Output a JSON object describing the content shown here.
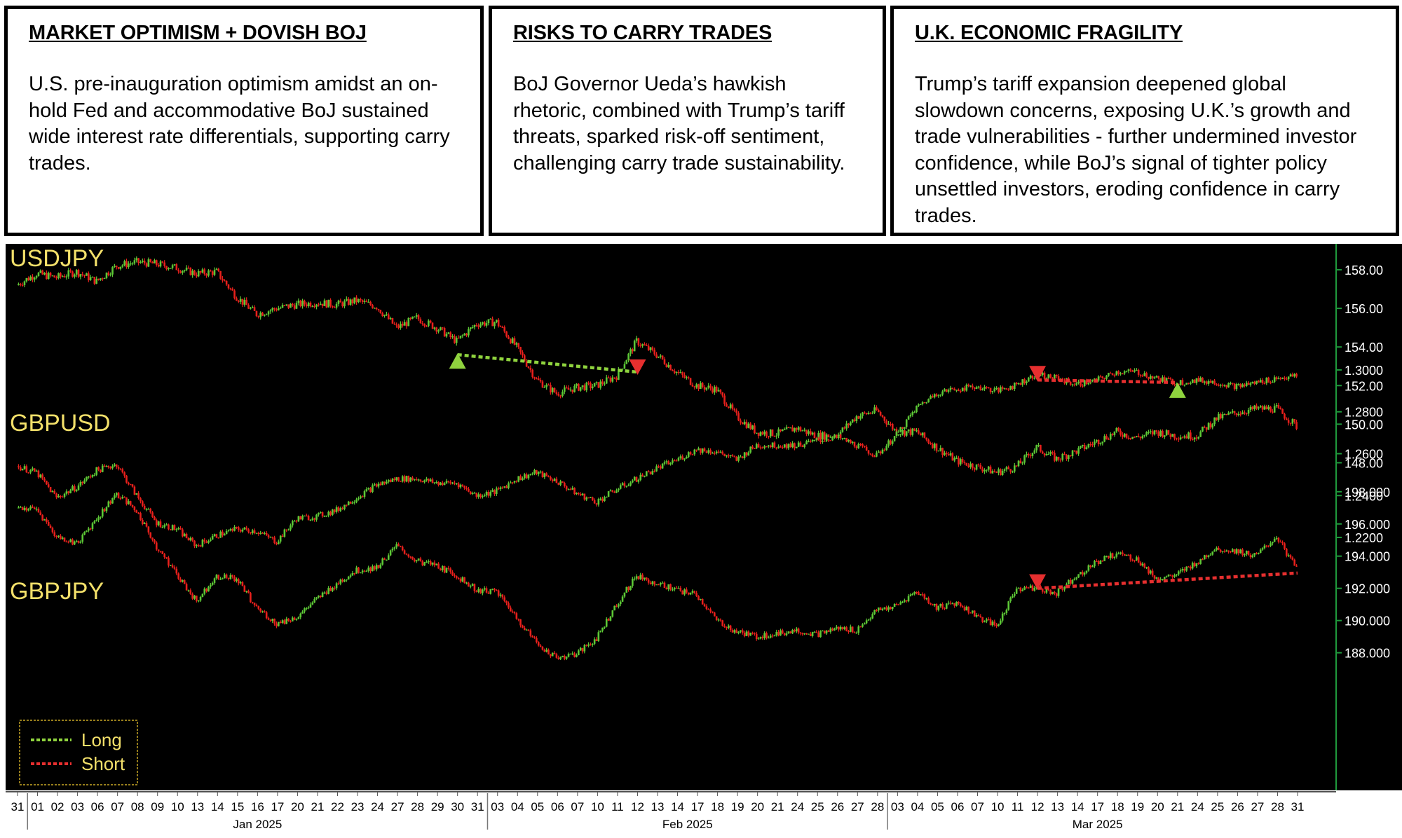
{
  "panels": [
    {
      "title": "MARKET OPTIMISM + DOVISH BOJ",
      "body": "U.S. pre-inauguration optimism amidst an on-hold Fed and accommodative BoJ sustained wide interest rate differentials, supporting carry trades."
    },
    {
      "title": "RISKS TO CARRY TRADES",
      "body": "BoJ Governor Ueda’s hawkish rhetoric, combined with Trump’s tariff threats, sparked risk-off sentiment, challenging carry trade sustainability."
    },
    {
      "title": "U.K. ECONOMIC FRAGILITY",
      "body": "Trump’s tariff expansion deepened global slowdown concerns, exposing U.K.’s growth and trade vulnerabilities - further undermined investor confidence, while BoJ’s signal of tighter policy unsettled investors, eroding confidence in carry trades."
    }
  ],
  "colors": {
    "background": "#000000",
    "up": "#5dc836",
    "down": "#e8201c",
    "label": "#f3e06a",
    "axis": "#1f9a3c",
    "long": "#8fd33e",
    "short": "#e62f2f"
  },
  "chart_data": {
    "type": "candlestick",
    "x_dates": [
      "31",
      "01",
      "02",
      "03",
      "06",
      "07",
      "08",
      "09",
      "10",
      "13",
      "14",
      "15",
      "16",
      "17",
      "20",
      "21",
      "22",
      "23",
      "24",
      "27",
      "28",
      "29",
      "30",
      "31",
      "03",
      "04",
      "05",
      "06",
      "07",
      "10",
      "11",
      "12",
      "13",
      "14",
      "17",
      "18",
      "19",
      "20",
      "21",
      "24",
      "25",
      "26",
      "27",
      "28",
      "03",
      "04",
      "05",
      "06",
      "07",
      "10",
      "11",
      "12",
      "13",
      "14",
      "17",
      "18",
      "19",
      "20",
      "21",
      "24",
      "25",
      "26",
      "27",
      "28",
      "31"
    ],
    "months": [
      {
        "label": "Jan 2025",
        "start": 1,
        "end": 23
      },
      {
        "label": "Feb 2025",
        "start": 24,
        "end": 43
      },
      {
        "label": "Mar 2025",
        "start": 44,
        "end": 64
      }
    ],
    "series": [
      {
        "name": "USDJPY",
        "ticks": [
          "158.00",
          "156.00",
          "154.00",
          "152.00",
          "150.00",
          "148.00"
        ],
        "ylim": [
          147.0,
          158.8
        ],
        "values": [
          157.2,
          157.8,
          157.6,
          157.9,
          157.4,
          158.2,
          158.4,
          158.3,
          158.1,
          157.8,
          157.9,
          156.6,
          155.7,
          156.0,
          156.2,
          156.3,
          156.2,
          156.4,
          156.1,
          155.0,
          155.5,
          155.0,
          154.3,
          155.2,
          155.3,
          154.0,
          152.3,
          151.6,
          151.9,
          152.0,
          152.5,
          154.3,
          153.6,
          152.7,
          152.0,
          151.8,
          150.4,
          149.6,
          149.5,
          149.8,
          149.4,
          149.4,
          150.4,
          150.7,
          149.6,
          149.6,
          148.8,
          148.1,
          147.8,
          147.5,
          147.8,
          148.8,
          148.2,
          148.6,
          149.1,
          149.6,
          149.3,
          149.6,
          149.4,
          149.4,
          150.3,
          150.6,
          150.8,
          150.8,
          149.9
        ]
      },
      {
        "name": "GBPUSD",
        "ticks": [
          "1.3000",
          "1.2800",
          "1.2600",
          "1.2400",
          "1.2200"
        ],
        "ylim": [
          1.218,
          1.304
        ],
        "values": [
          1.254,
          1.251,
          1.239,
          1.244,
          1.252,
          1.255,
          1.24,
          1.227,
          1.224,
          1.216,
          1.221,
          1.224,
          1.223,
          1.218,
          1.229,
          1.23,
          1.233,
          1.239,
          1.245,
          1.248,
          1.248,
          1.246,
          1.246,
          1.24,
          1.242,
          1.248,
          1.251,
          1.247,
          1.241,
          1.237,
          1.243,
          1.248,
          1.253,
          1.257,
          1.262,
          1.261,
          1.257,
          1.264,
          1.264,
          1.264,
          1.266,
          1.268,
          1.264,
          1.259,
          1.269,
          1.282,
          1.289,
          1.291,
          1.292,
          1.29,
          1.293,
          1.298,
          1.296,
          1.293,
          1.295,
          1.299,
          1.299,
          1.296,
          1.294,
          1.295,
          1.294,
          1.292,
          1.294,
          1.296,
          1.297
        ]
      },
      {
        "name": "GBPJPY",
        "ticks": [
          "198.000",
          "196.000",
          "194.000",
          "192.000",
          "190.000",
          "188.000"
        ],
        "ylim": [
          187.2,
          198.6
        ],
        "values": [
          197.0,
          196.9,
          195.2,
          194.8,
          196.3,
          197.9,
          196.8,
          194.6,
          192.9,
          191.2,
          192.8,
          192.6,
          190.8,
          189.8,
          190.2,
          191.3,
          192.3,
          193.1,
          193.3,
          194.6,
          193.7,
          193.4,
          192.8,
          191.9,
          191.8,
          190.2,
          188.6,
          187.7,
          187.9,
          188.9,
          191.0,
          192.8,
          192.3,
          191.9,
          191.6,
          190.0,
          189.3,
          189.0,
          189.2,
          189.4,
          189.1,
          189.5,
          189.4,
          190.6,
          190.9,
          191.8,
          190.8,
          191.1,
          190.3,
          189.6,
          192.0,
          192.0,
          191.7,
          192.8,
          193.6,
          194.2,
          193.8,
          192.6,
          192.8,
          193.6,
          194.5,
          194.3,
          194.0,
          195.2,
          193.2
        ]
      }
    ],
    "signals": [
      {
        "series": "USDJPY",
        "type": "long",
        "from": [
          22,
          153.6
        ],
        "to": [
          31,
          152.7
        ],
        "entry": "up",
        "exit": "down"
      },
      {
        "series": "GBPUSD",
        "type": "short",
        "from": [
          51,
          1.2952
        ],
        "to": [
          58,
          1.294
        ],
        "entry": "down",
        "exit": "up"
      },
      {
        "series": "GBPJPY",
        "type": "short",
        "from": [
          51,
          192.0
        ],
        "to": [
          64,
          192.95
        ],
        "entry": "down",
        "exit": "none"
      }
    ],
    "legend": [
      {
        "label": "Long",
        "type": "long"
      },
      {
        "label": "Short",
        "type": "short"
      }
    ],
    "legend_position": "bottom-left"
  }
}
